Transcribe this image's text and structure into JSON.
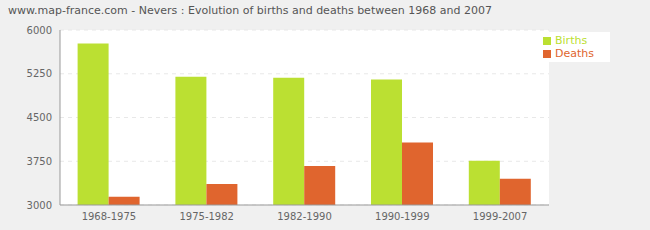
{
  "chart_data": {
    "type": "bar",
    "title": "www.map-france.com - Nevers : Evolution of births and deaths between 1968 and 2007",
    "categories": [
      "1968-1975",
      "1975-1982",
      "1982-1990",
      "1990-1999",
      "1999-2007"
    ],
    "series": [
      {
        "name": "Births",
        "color": "#bbe032",
        "values": [
          5770,
          5200,
          5180,
          5150,
          3760
        ]
      },
      {
        "name": "Deaths",
        "color": "#e0652e",
        "values": [
          3140,
          3360,
          3670,
          4070,
          3450
        ]
      }
    ],
    "ylim": [
      3000,
      6000
    ],
    "yticks": [
      3000,
      3750,
      4500,
      5250,
      6000
    ],
    "grid": true,
    "legend": "top-right"
  }
}
